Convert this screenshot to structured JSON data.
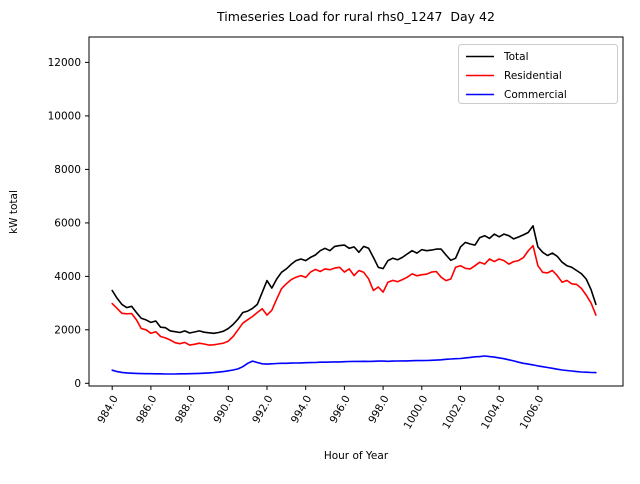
{
  "figure": {
    "title": "Timeseries Load for rural rhs0_1247  Day 42",
    "xlabel": "Hour of Year",
    "ylabel": "kW total"
  },
  "legend": {
    "position": "top-right",
    "entries": [
      {
        "label": "Total",
        "color": "#000000"
      },
      {
        "label": "Residential",
        "color": "#ff0000"
      },
      {
        "label": "Commercial",
        "color": "#0000ff"
      }
    ]
  },
  "chart_data": {
    "type": "line",
    "title": "Timeseries Load for rural rhs0_1247  Day 42",
    "xlabel": "Hour of Year",
    "ylabel": "kW total",
    "xlim": [
      982.8,
      1010.4
    ],
    "ylim": [
      -100,
      12950
    ],
    "x_ticks": [
      984,
      986,
      988,
      990,
      992,
      994,
      996,
      998,
      1000,
      1002,
      1004,
      1006
    ],
    "x_tick_labels": [
      "984.0",
      "986.0",
      "988.0",
      "990.0",
      "992.0",
      "994.0",
      "996.0",
      "998.0",
      "1000.0",
      "1002.0",
      "1004.0",
      "1006.0"
    ],
    "y_ticks": [
      0,
      2000,
      4000,
      6000,
      8000,
      10000,
      12000
    ],
    "y_tick_labels": [
      "0",
      "2000",
      "4000",
      "6000",
      "8000",
      "10000",
      "12000"
    ],
    "grid": false,
    "legend_position": "upper right",
    "x": [
      984,
      984.25,
      984.5,
      984.75,
      985,
      985.25,
      985.5,
      985.75,
      986,
      986.25,
      986.5,
      986.75,
      987,
      987.25,
      987.5,
      987.75,
      988,
      988.25,
      988.5,
      988.75,
      989,
      989.25,
      989.5,
      989.75,
      990,
      990.25,
      990.5,
      990.75,
      991,
      991.25,
      991.5,
      991.75,
      992,
      992.25,
      992.5,
      992.75,
      993,
      993.25,
      993.5,
      993.75,
      994,
      994.25,
      994.5,
      994.75,
      995,
      995.25,
      995.5,
      995.75,
      996,
      996.25,
      996.5,
      996.75,
      997,
      997.25,
      997.5,
      997.75,
      998,
      998.25,
      998.5,
      998.75,
      999,
      999.25,
      999.5,
      999.75,
      1000,
      1000.25,
      1000.5,
      1000.75,
      1001,
      1001.25,
      1001.5,
      1001.75,
      1002,
      1002.25,
      1002.5,
      1002.75,
      1003,
      1003.25,
      1003.5,
      1003.75,
      1004,
      1004.25,
      1004.5,
      1004.75,
      1005,
      1005.25,
      1005.5,
      1005.75,
      1006,
      1006.25,
      1006.5,
      1006.75,
      1007,
      1007.25,
      1007.5,
      1007.75,
      1008,
      1008.25,
      1008.5,
      1008.75,
      1009
    ],
    "series": [
      {
        "name": "Total",
        "color": "#000000",
        "values": [
          3470,
          3180,
          2950,
          2830,
          2880,
          2650,
          2430,
          2370,
          2280,
          2330,
          2100,
          2080,
          1960,
          1930,
          1900,
          1960,
          1880,
          1920,
          1960,
          1910,
          1890,
          1870,
          1900,
          1950,
          2050,
          2200,
          2400,
          2650,
          2700,
          2800,
          2950,
          3400,
          3840,
          3560,
          3900,
          4150,
          4280,
          4450,
          4590,
          4650,
          4590,
          4710,
          4800,
          4960,
          5050,
          4960,
          5120,
          5150,
          5170,
          5050,
          5100,
          4900,
          5120,
          5050,
          4710,
          4340,
          4290,
          4590,
          4680,
          4620,
          4710,
          4840,
          4960,
          4870,
          5000,
          4960,
          4980,
          5020,
          5020,
          4800,
          4600,
          4680,
          5100,
          5270,
          5210,
          5170,
          5450,
          5520,
          5420,
          5580,
          5480,
          5580,
          5520,
          5400,
          5470,
          5550,
          5640,
          5890,
          5100,
          4900,
          4780,
          4870,
          4750,
          4530,
          4400,
          4340,
          4220,
          4100,
          3900,
          3500,
          2950
        ]
      },
      {
        "name": "Residential",
        "color": "#ff0000",
        "values": [
          2980,
          2800,
          2620,
          2600,
          2610,
          2380,
          2050,
          2000,
          1870,
          1930,
          1750,
          1700,
          1620,
          1520,
          1480,
          1530,
          1430,
          1460,
          1500,
          1470,
          1430,
          1440,
          1470,
          1500,
          1580,
          1750,
          2000,
          2250,
          2380,
          2500,
          2650,
          2790,
          2550,
          2730,
          3150,
          3540,
          3720,
          3880,
          3970,
          4030,
          3960,
          4160,
          4260,
          4180,
          4280,
          4250,
          4310,
          4340,
          4160,
          4280,
          4030,
          4220,
          4150,
          3910,
          3470,
          3600,
          3410,
          3780,
          3850,
          3800,
          3880,
          3970,
          4090,
          4020,
          4060,
          4080,
          4160,
          4180,
          3970,
          3840,
          3900,
          4340,
          4400,
          4300,
          4280,
          4400,
          4530,
          4460,
          4650,
          4550,
          4650,
          4590,
          4460,
          4550,
          4590,
          4700,
          4950,
          5150,
          4400,
          4150,
          4130,
          4220,
          4030,
          3780,
          3850,
          3720,
          3700,
          3550,
          3300,
          3000,
          2550
        ]
      },
      {
        "name": "Commercial",
        "color": "#0000ff",
        "values": [
          490,
          440,
          410,
          390,
          380,
          370,
          365,
          360,
          360,
          355,
          355,
          350,
          350,
          350,
          355,
          355,
          360,
          365,
          370,
          380,
          390,
          400,
          420,
          440,
          470,
          500,
          540,
          620,
          750,
          830,
          780,
          730,
          720,
          730,
          740,
          750,
          750,
          755,
          760,
          765,
          770,
          775,
          780,
          790,
          790,
          795,
          800,
          800,
          810,
          815,
          820,
          820,
          825,
          820,
          825,
          830,
          830,
          825,
          830,
          835,
          840,
          840,
          845,
          850,
          850,
          855,
          860,
          870,
          880,
          900,
          910,
          920,
          930,
          950,
          970,
          990,
          1000,
          1020,
          1000,
          980,
          950,
          920,
          880,
          840,
          790,
          750,
          720,
          690,
          650,
          620,
          590,
          560,
          530,
          500,
          480,
          460,
          440,
          425,
          415,
          405,
          400
        ]
      }
    ]
  }
}
